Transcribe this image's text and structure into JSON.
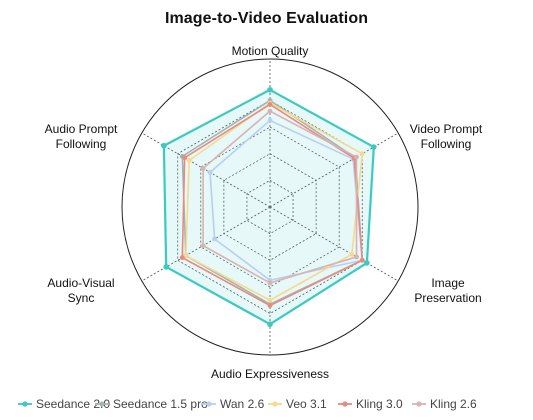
{
  "chart_data": {
    "type": "radar",
    "title": "Image-to-Video Evaluation",
    "axes": [
      [
        "Motion Quality"
      ],
      [
        "Video Prompt",
        "Following"
      ],
      [
        "Image",
        "Preservation"
      ],
      [
        "Audio Expressiveness"
      ],
      [
        "Audio-Visual",
        "Sync"
      ],
      [
        "Audio Prompt",
        "Following"
      ]
    ],
    "range": [
      0,
      1
    ],
    "series": [
      {
        "name": "Seedance 2.0",
        "color": "#3cc9c0",
        "values": [
          0.88,
          0.9,
          0.84,
          0.88,
          0.9,
          0.92
        ]
      },
      {
        "name": "Seedance 1.5 pro",
        "color": "#a3b5b3",
        "values": [
          0.8,
          0.74,
          0.8,
          0.73,
          0.73,
          0.76
        ]
      },
      {
        "name": "Wan 2.6",
        "color": "#b9cfee",
        "values": [
          0.65,
          0.72,
          0.8,
          0.55,
          0.48,
          0.52
        ]
      },
      {
        "name": "Veo 3.1",
        "color": "#f7d98f",
        "values": [
          0.78,
          0.8,
          0.71,
          0.7,
          0.73,
          0.7
        ]
      },
      {
        "name": "Kling 3.0",
        "color": "#e88a80",
        "values": [
          0.77,
          0.73,
          0.8,
          0.74,
          0.76,
          0.74
        ]
      },
      {
        "name": "Kling 2.6",
        "color": "#d8b3b3",
        "values": [
          0.72,
          0.75,
          0.75,
          0.57,
          0.58,
          0.58
        ]
      }
    ]
  }
}
